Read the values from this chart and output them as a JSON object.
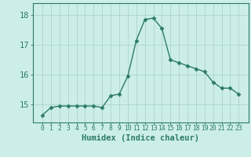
{
  "x": [
    0,
    1,
    2,
    3,
    4,
    5,
    6,
    7,
    8,
    9,
    10,
    11,
    12,
    13,
    14,
    15,
    16,
    17,
    18,
    19,
    20,
    21,
    22,
    23
  ],
  "y": [
    14.65,
    14.9,
    14.95,
    14.95,
    14.95,
    14.95,
    14.95,
    14.9,
    15.3,
    15.35,
    15.95,
    17.15,
    17.85,
    17.9,
    17.55,
    16.5,
    16.4,
    16.3,
    16.2,
    16.1,
    15.75,
    15.55,
    15.55,
    15.35
  ],
  "line_color": "#2d7a6b",
  "marker": "D",
  "marker_size": 2.5,
  "bg_color": "#cceee8",
  "grid_color": "#aad4cc",
  "xlabel": "Humidex (Indice chaleur)",
  "ylim": [
    14.4,
    18.4
  ],
  "yticks": [
    15,
    16,
    17,
    18
  ],
  "xticks": [
    0,
    1,
    2,
    3,
    4,
    5,
    6,
    7,
    8,
    9,
    10,
    11,
    12,
    13,
    14,
    15,
    16,
    17,
    18,
    19,
    20,
    21,
    22,
    23
  ],
  "tick_color": "#2d7a6b",
  "spine_color": "#2d7a6b",
  "xlabel_fontsize": 7.5,
  "ytick_fontsize": 7.5,
  "xtick_fontsize": 5.8,
  "line_width": 1.0
}
